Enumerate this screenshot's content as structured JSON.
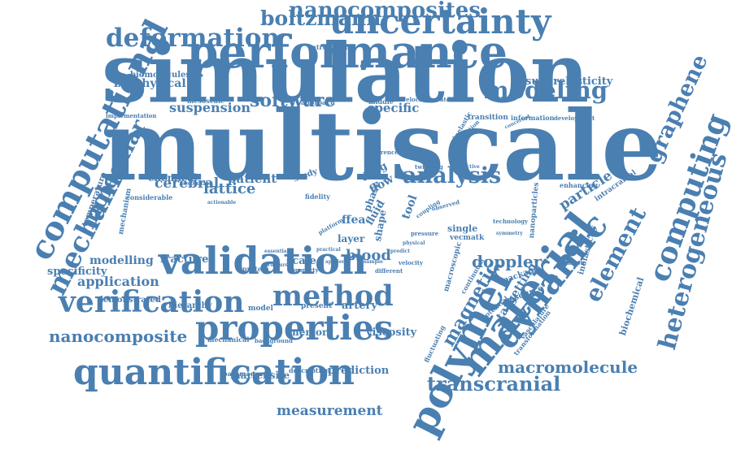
{
  "cloud": {
    "color": "#4a7fb1",
    "words": [
      "simulation",
      "multiscale",
      "performance",
      "validation",
      "uncertainty",
      "properties",
      "quantification",
      "verification",
      "method",
      "polymer",
      "material",
      "computational",
      "mechanic",
      "molecular",
      "graphene",
      "computing",
      "heterogeneous",
      "dynamic",
      "element",
      "nanocomposites",
      "boltzmann",
      "deformation",
      "modeling",
      "software",
      "analysis",
      "magnetic",
      "transcranial",
      "macromolecule",
      "nanocomposite",
      "measurement",
      "blood",
      "suspension",
      "specific",
      "lattice",
      "cerebral",
      "patient",
      "chemical",
      "fracture",
      "modelling",
      "application",
      "specificity",
      "doppler",
      "particle",
      "memory",
      "artery",
      "viscosity",
      "prediction",
      "martensite",
      "biophysical",
      "biomolecules",
      "superelasticity",
      "drug",
      "flow",
      "study",
      "scale",
      "single",
      "vecmatk",
      "targetting",
      "inelasticity",
      "biochemical",
      "introducing",
      "mesoscale",
      "approach",
      "middle",
      "velocities",
      "atomistic",
      "transition",
      "information",
      "development",
      "implementation",
      "temperature",
      "considerable",
      "mechanism",
      "demonstrated",
      "hierarchy",
      "model",
      "present",
      "mechanical",
      "background",
      "paramagnetic",
      "description",
      "fluctuating",
      "protein",
      "property",
      "different",
      "velocity",
      "resolution",
      "actionable",
      "enhancing",
      "intracranial",
      "nanoparticles",
      "example",
      "package",
      "resource",
      "potential",
      "transformation",
      "vasculature",
      "macroscopic",
      "continuum",
      "twinning",
      "predictive",
      "layer",
      "ffea",
      "phase",
      "fluid",
      "fidelity",
      "shape",
      "tool",
      "structure",
      "essential",
      "symmetry",
      "technology",
      "difference",
      "estimation",
      "inelastic",
      "concerted",
      "observed",
      "coupling",
      "pressure",
      "platform",
      "practical",
      "physical",
      "predict",
      "sample",
      "applied"
    ]
  }
}
